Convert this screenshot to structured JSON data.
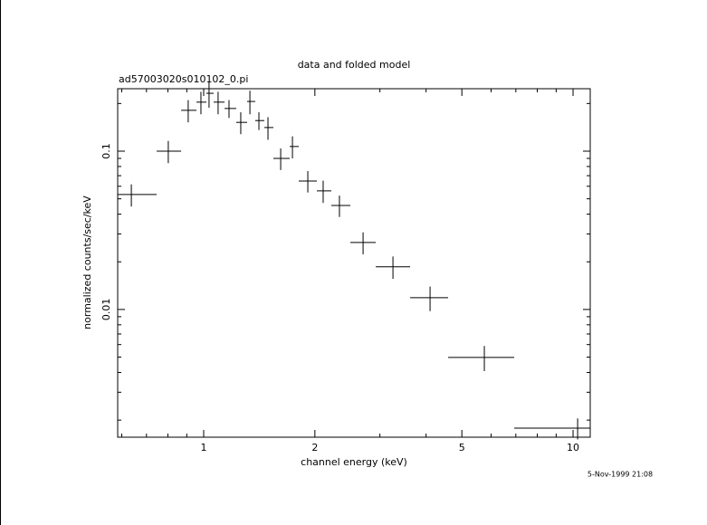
{
  "chart_data": {
    "type": "scatter",
    "title": "data and folded model",
    "subtitle": "ad57003020s010102_0.pi",
    "x_label": "channel energy (keV)",
    "y_label": "normalized counts/sec/keV",
    "annotation": "5-Nov-1999 21:08",
    "color": "#000000",
    "log_x": true,
    "log_y": true,
    "x": [
      0.637,
      0.802,
      0.908,
      0.983,
      1.034,
      1.094,
      1.171,
      1.26,
      1.334,
      1.411,
      1.493,
      1.616,
      1.739,
      1.914,
      2.106,
      2.331,
      2.701,
      3.254,
      4.101,
      5.752,
      10.29
    ],
    "x_low": [
      0.585,
      0.746,
      0.869,
      0.956,
      1.017,
      1.064,
      1.139,
      1.225,
      1.311,
      1.379,
      1.459,
      1.544,
      1.709,
      1.809,
      2.025,
      2.216,
      2.495,
      2.923,
      3.622,
      4.59,
      6.93
    ],
    "x_high": [
      0.746,
      0.869,
      0.956,
      1.017,
      1.064,
      1.139,
      1.225,
      1.311,
      1.379,
      1.459,
      1.544,
      1.709,
      1.809,
      2.025,
      2.216,
      2.495,
      2.923,
      3.622,
      4.59,
      6.93,
      11.13
    ],
    "values": [
      0.0532,
      0.1,
      0.181,
      0.204,
      0.232,
      0.204,
      0.186,
      0.152,
      0.206,
      0.156,
      0.141,
      0.09,
      0.107,
      0.0648,
      0.0561,
      0.0454,
      0.0265,
      0.0186,
      0.01186,
      0.00498,
      0.00178
    ],
    "yerr": [
      0.0085,
      0.016,
      0.029,
      0.033,
      0.044,
      0.033,
      0.024,
      0.024,
      0.035,
      0.02,
      0.023,
      0.014,
      0.017,
      0.01,
      0.009,
      0.007,
      0.0042,
      0.003,
      0.0021,
      0.0009,
      0.00027
    ],
    "xlim": [
      0.585,
      11.13
    ],
    "ylim": [
      0.00156,
      0.248
    ],
    "xticks": [
      1,
      2,
      5,
      10
    ],
    "yticks": [
      0.01,
      0.1
    ],
    "xminorticks": [
      0.6,
      0.7,
      0.8,
      0.9,
      3,
      4,
      6,
      7,
      8,
      9
    ],
    "yminorticks": [
      0.002,
      0.003,
      0.004,
      0.005,
      0.006,
      0.007,
      0.008,
      0.009,
      0.02,
      0.03,
      0.04,
      0.05,
      0.06,
      0.07,
      0.08,
      0.09,
      0.2
    ]
  }
}
